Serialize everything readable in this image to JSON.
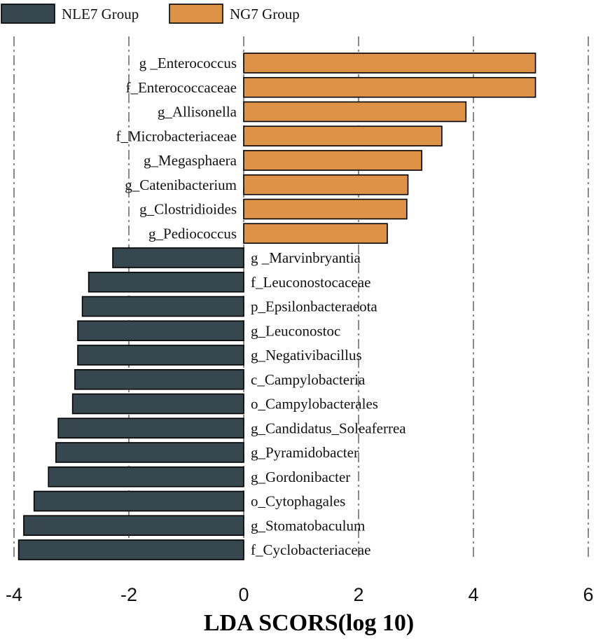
{
  "chart_data": {
    "type": "bar",
    "orientation": "horizontal",
    "xlabel": "LDA SCORS(log 10)",
    "xlim": [
      -4,
      6
    ],
    "xticks": [
      -4,
      -2,
      0,
      2,
      4,
      6
    ],
    "xtick_labels": [
      "-4",
      "-2",
      "0",
      "2",
      "4",
      "6"
    ],
    "grid": "vertical dash-dot",
    "legend_position": "top-left",
    "series": [
      {
        "name": "NLE7 Group",
        "color": "#36474f"
      },
      {
        "name": "NG7 Group",
        "color": "#dd9247"
      }
    ],
    "categories": [
      "g _Enterococcus",
      "f_Enterococcaceae",
      "g_Allisonella",
      "f_Microbacteriaceae",
      "g_Megasphaera",
      "g_Catenibacterium",
      "g_Clostridioides",
      "g_Pediococcus",
      "g _Marvinbryantia",
      "f_Leuconostocaceae",
      "p_Epsilonbacteraeota",
      "g_Leuconostoc",
      "g_Negativibacillus",
      "c_Campylobacteria",
      "o_Campylobacterales",
      "g_Candidatus_Soleaferrea",
      "g_Pyramidobacter",
      "g_Gordonibacter",
      "o_Cytophagales",
      "g_Stomatobaculum",
      "f_Cyclobacteriaceae"
    ],
    "values": [
      5.08,
      5.08,
      3.87,
      3.45,
      3.1,
      2.86,
      2.84,
      2.5,
      -2.28,
      -2.7,
      -2.81,
      -2.89,
      -2.89,
      -2.94,
      -2.98,
      -3.23,
      -3.27,
      -3.4,
      -3.65,
      -3.83,
      -3.92
    ],
    "groups": [
      "NG7 Group",
      "NG7 Group",
      "NG7 Group",
      "NG7 Group",
      "NG7 Group",
      "NG7 Group",
      "NG7 Group",
      "NG7 Group",
      "NLE7 Group",
      "NLE7 Group",
      "NLE7 Group",
      "NLE7 Group",
      "NLE7 Group",
      "NLE7 Group",
      "NLE7 Group",
      "NLE7 Group",
      "NLE7 Group",
      "NLE7 Group",
      "NLE7 Group",
      "NLE7 Group",
      "NLE7 Group"
    ]
  }
}
